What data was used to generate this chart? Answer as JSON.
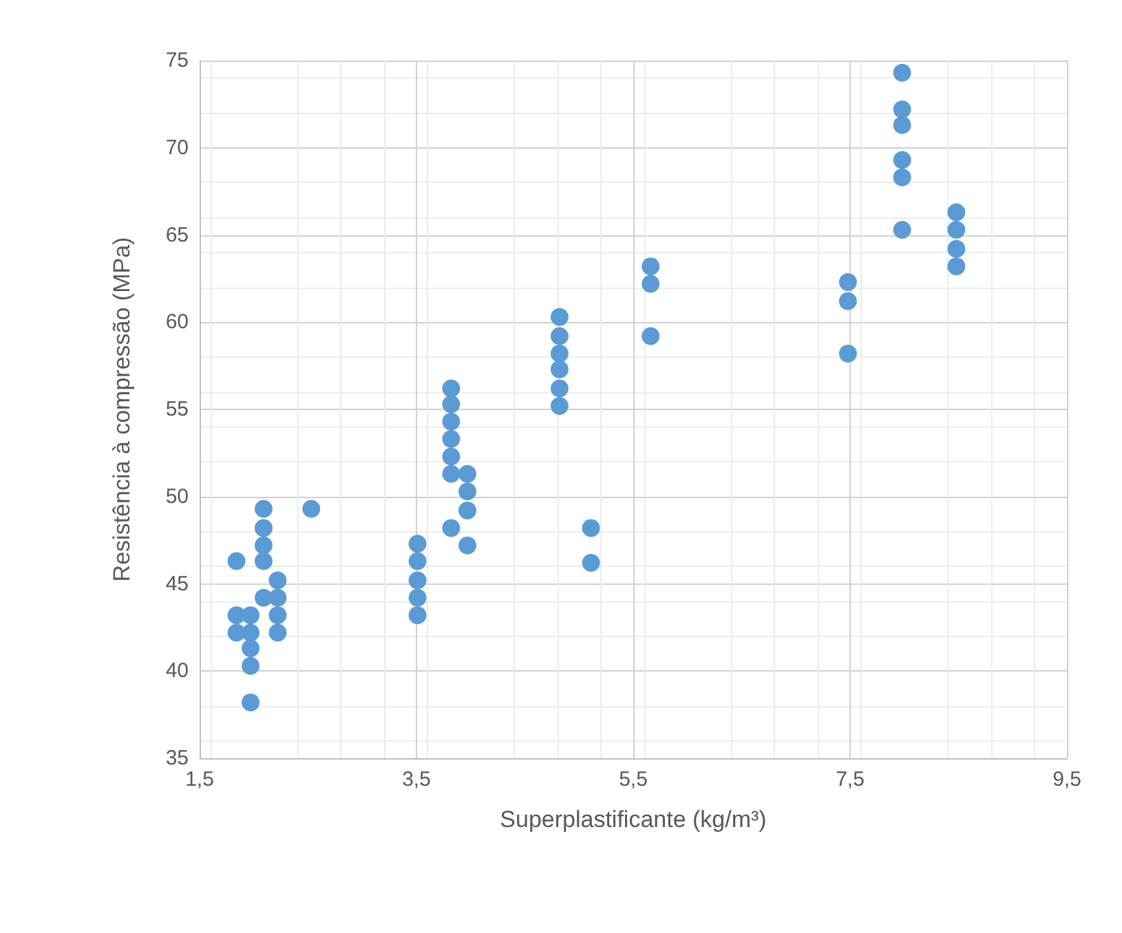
{
  "chart_data": {
    "type": "scatter",
    "xlabel": "Superplastificante (kg/m³)",
    "ylabel": "Resistência à compressão (MPa)",
    "xlim": [
      1.5,
      9.5
    ],
    "xticks": [
      {
        "value": 1.5,
        "label": "1,5"
      },
      {
        "value": 3.5,
        "label": "3,5"
      },
      {
        "value": 5.5,
        "label": "5,5"
      },
      {
        "value": 7.5,
        "label": "7,5"
      },
      {
        "value": 9.5,
        "label": "9,5"
      }
    ],
    "ylim": [
      35,
      75
    ],
    "yticks": [
      35,
      40,
      45,
      50,
      55,
      60,
      65,
      70,
      75
    ],
    "grid": true,
    "marker": "circle",
    "series": [
      {
        "color": "#5b9bd5",
        "x": [
          1.84,
          1.84,
          1.97,
          1.84,
          1.97,
          1.97,
          1.97,
          1.97,
          2.09,
          2.09,
          2.09,
          2.09,
          2.09,
          2.22,
          2.22,
          2.22,
          2.22,
          2.53,
          3.51,
          3.51,
          3.51,
          3.51,
          3.51,
          3.82,
          3.82,
          3.82,
          3.82,
          3.82,
          3.82,
          3.82,
          3.97,
          3.97,
          3.97,
          3.97,
          4.82,
          4.82,
          4.82,
          4.82,
          4.82,
          4.82,
          5.11,
          5.11,
          5.66,
          5.66,
          5.66,
          7.48,
          7.48,
          7.48,
          7.98,
          7.98,
          7.98,
          7.98,
          7.98,
          7.98,
          8.48,
          8.48,
          8.48,
          8.48
        ],
        "values": [
          46.3,
          43.2,
          43.2,
          42.2,
          42.2,
          41.3,
          40.3,
          38.2,
          49.3,
          48.2,
          47.2,
          46.3,
          44.2,
          45.2,
          44.2,
          43.2,
          42.2,
          49.3,
          47.3,
          46.3,
          45.2,
          44.2,
          43.2,
          56.2,
          55.3,
          54.3,
          53.3,
          52.3,
          51.3,
          48.2,
          51.3,
          50.3,
          49.2,
          47.2,
          60.3,
          59.2,
          58.2,
          57.3,
          56.2,
          55.2,
          48.2,
          46.2,
          63.2,
          62.2,
          59.2,
          62.3,
          61.2,
          58.2,
          74.3,
          72.2,
          71.3,
          69.3,
          68.3,
          65.3,
          66.3,
          65.3,
          64.2,
          63.2
        ]
      }
    ]
  }
}
